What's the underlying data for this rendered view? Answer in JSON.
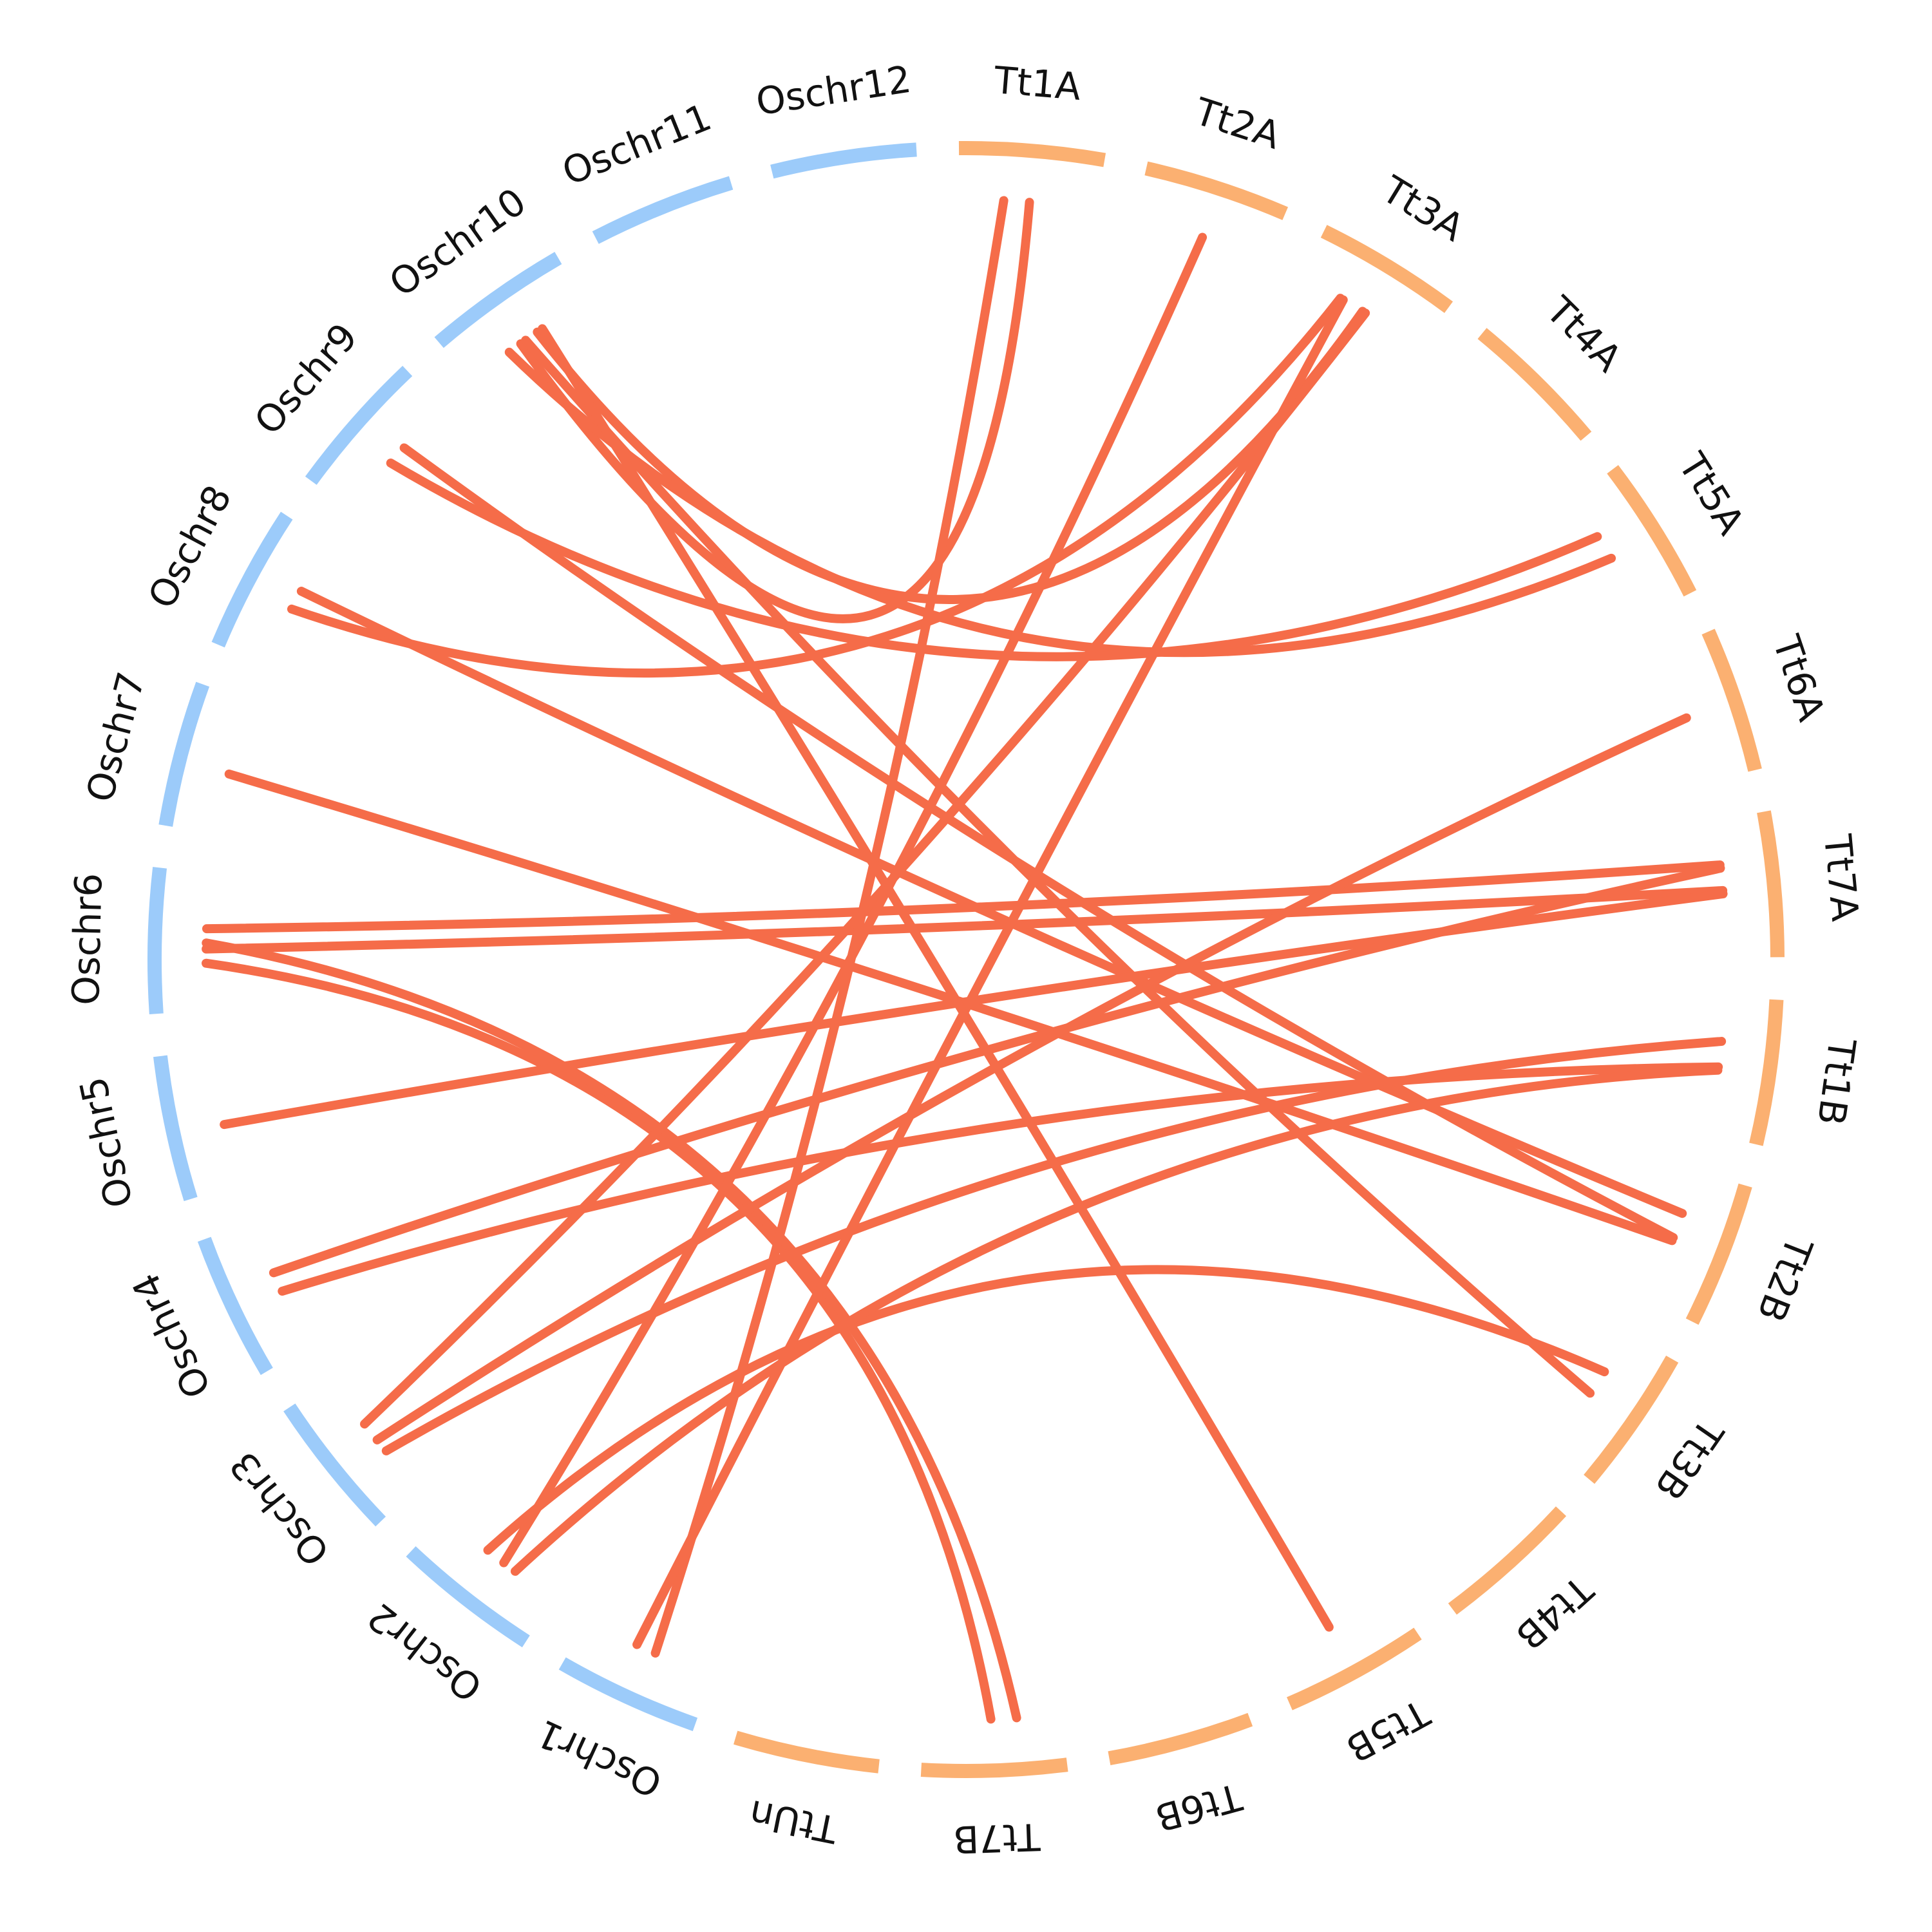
{
  "colors": {
    "rice": "#9ccbfa",
    "wheat": "#fbb071",
    "link": "#f56c49",
    "label": "#111111",
    "background": "#ffffff"
  },
  "diagram": {
    "type": "circos-synteny",
    "segments": [
      {
        "label": "Tt1A",
        "genome": "wheat"
      },
      {
        "label": "Tt2A",
        "genome": "wheat"
      },
      {
        "label": "Tt3A",
        "genome": "wheat"
      },
      {
        "label": "Tt4A",
        "genome": "wheat"
      },
      {
        "label": "Tt5A",
        "genome": "wheat"
      },
      {
        "label": "Tt6A",
        "genome": "wheat"
      },
      {
        "label": "Tt7A",
        "genome": "wheat"
      },
      {
        "label": "Tt1B",
        "genome": "wheat"
      },
      {
        "label": "Tt2B",
        "genome": "wheat"
      },
      {
        "label": "Tt3B",
        "genome": "wheat"
      },
      {
        "label": "Tt4B",
        "genome": "wheat"
      },
      {
        "label": "Tt5B",
        "genome": "wheat"
      },
      {
        "label": "Tt6B",
        "genome": "wheat"
      },
      {
        "label": "Tt7B",
        "genome": "wheat"
      },
      {
        "label": "TtUn",
        "genome": "wheat"
      },
      {
        "label": "Oschr1",
        "genome": "rice"
      },
      {
        "label": "Oschr2",
        "genome": "rice"
      },
      {
        "label": "Oschr3",
        "genome": "rice"
      },
      {
        "label": "Oschr4",
        "genome": "rice"
      },
      {
        "label": "Oschr5",
        "genome": "rice"
      },
      {
        "label": "Oschr6",
        "genome": "rice"
      },
      {
        "label": "Oschr7",
        "genome": "rice"
      },
      {
        "label": "Oschr8",
        "genome": "rice"
      },
      {
        "label": "Oschr9",
        "genome": "rice"
      },
      {
        "label": "Oschr10",
        "genome": "rice"
      },
      {
        "label": "Oschr11",
        "genome": "rice"
      },
      {
        "label": "Oschr12",
        "genome": "rice"
      }
    ],
    "links": [
      {
        "from": "Oschr10",
        "to": "Tt1A"
      },
      {
        "from": "Oschr10",
        "to": "Tt3A"
      },
      {
        "from": "Oschr10",
        "to": "Tt5A"
      },
      {
        "from": "Oschr10",
        "to": "Tt3B"
      },
      {
        "from": "Oschr9",
        "to": "Tt5A"
      },
      {
        "from": "Oschr9",
        "to": "Tt2B"
      },
      {
        "from": "Oschr8",
        "to": "Tt3A"
      },
      {
        "from": "Oschr8",
        "to": "Tt2B"
      },
      {
        "from": "Oschr7",
        "to": "Tt2B"
      },
      {
        "from": "Oschr6",
        "to": "Tt7A"
      },
      {
        "from": "Oschr6",
        "to": "Tt7A"
      },
      {
        "from": "Oschr6",
        "to": "Tt7B"
      },
      {
        "from": "Oschr6",
        "to": "Tt7B"
      },
      {
        "from": "Oschr5",
        "to": "Tt7A"
      },
      {
        "from": "Oschr4",
        "to": "Tt1B"
      },
      {
        "from": "Oschr4",
        "to": "Tt7A"
      },
      {
        "from": "Oschr3",
        "to": "Tt6A"
      },
      {
        "from": "Oschr3",
        "to": "Tt3A"
      },
      {
        "from": "Oschr3",
        "to": "Tt1B"
      },
      {
        "from": "Oschr2",
        "to": "Tt2A"
      },
      {
        "from": "Oschr2",
        "to": "Tt3B"
      },
      {
        "from": "Oschr2",
        "to": "Tt1B"
      },
      {
        "from": "Oschr1",
        "to": "Tt1A"
      },
      {
        "from": "Oschr1",
        "to": "Tt3A"
      },
      {
        "from": "Oschr10",
        "to": "Tt5B"
      }
    ]
  }
}
